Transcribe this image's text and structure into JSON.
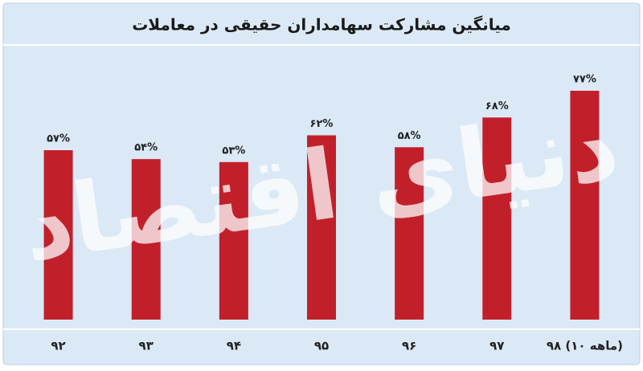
{
  "chart_data": {
    "type": "bar",
    "title": "میانگین مشارکت سهامداران حقیقی در معاملات",
    "watermark": "دنیای اقتصاد",
    "categories": [
      "۹۲",
      "۹۳",
      "۹۴",
      "۹۵",
      "۹۶",
      "۹۷",
      "۹۸ (۱۰ ماهه)"
    ],
    "values": [
      57,
      54,
      53,
      62,
      58,
      68,
      77
    ],
    "value_labels": [
      "۵۷%",
      "۵۴%",
      "۵۳%",
      "۶۲%",
      "۵۸%",
      "۶۸%",
      "۷۷%"
    ],
    "color": "#c1202b"
  }
}
